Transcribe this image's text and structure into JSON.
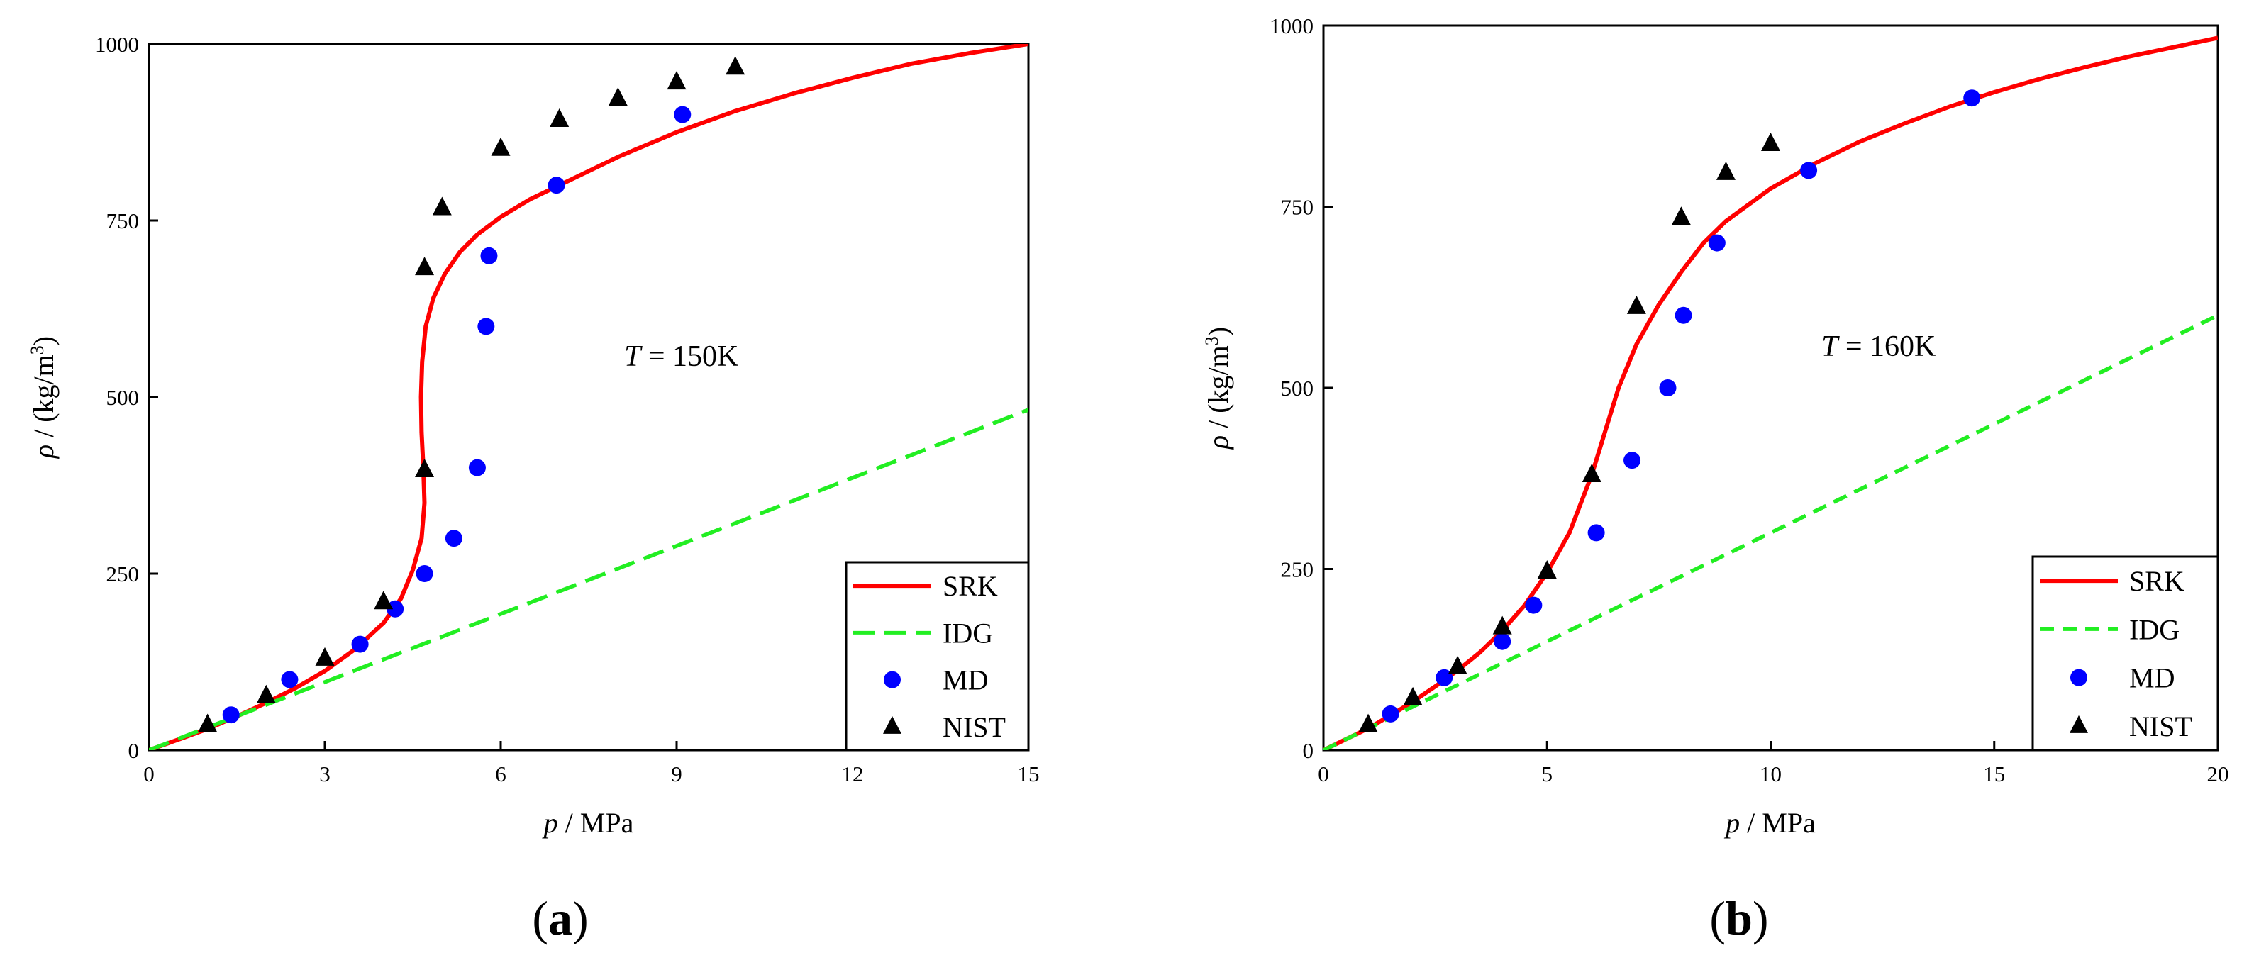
{
  "chart_data": [
    {
      "type": "line",
      "panel_label_open": "(",
      "panel_label_letter": "a",
      "panel_label_close": ")",
      "annotation": {
        "var": "T",
        "value": " = 150K"
      },
      "xlabel": {
        "var": "p",
        "unit": " / MPa"
      },
      "ylabel": {
        "var": "ρ",
        "unit_pre": " / (kg/m",
        "unit_sup": "3",
        "unit_post": ")"
      },
      "xlim": [
        0,
        15
      ],
      "ylim": [
        0,
        1000
      ],
      "xticks": [
        0,
        3,
        6,
        9,
        12,
        15
      ],
      "yticks": [
        0,
        250,
        500,
        750,
        1000
      ],
      "legend_position": "bottom-right",
      "series": [
        {
          "name": "SRK",
          "kind": "line",
          "color": "#ff0000",
          "dash": "solid",
          "x": [
            0,
            0.5,
            1,
            1.5,
            2,
            2.5,
            3,
            3.5,
            4,
            4.3,
            4.5,
            4.65,
            4.7,
            4.68,
            4.65,
            4.64,
            4.66,
            4.72,
            4.85,
            5.05,
            5.3,
            5.6,
            6,
            6.5,
            7,
            8,
            9,
            10,
            11,
            12,
            13,
            14,
            15
          ],
          "y": [
            0,
            15,
            30,
            48,
            67,
            88,
            112,
            142,
            180,
            215,
            255,
            300,
            350,
            400,
            450,
            500,
            550,
            600,
            640,
            675,
            705,
            730,
            755,
            780,
            800,
            840,
            875,
            905,
            930,
            952,
            972,
            987,
            1000
          ]
        },
        {
          "name": "IDG",
          "kind": "line",
          "color": "#22ee22",
          "dash": "dashed",
          "x": [
            0,
            15
          ],
          "y": [
            0,
            482
          ]
        },
        {
          "name": "MD",
          "kind": "scatter",
          "marker": "circle",
          "color": "#0000ff",
          "x": [
            1.4,
            2.4,
            3.6,
            4.2,
            4.7,
            5.2,
            5.6,
            5.75,
            5.8,
            6.95,
            9.1
          ],
          "y": [
            50,
            100,
            150,
            200,
            250,
            300,
            400,
            600,
            700,
            800,
            900
          ]
        },
        {
          "name": "NIST",
          "kind": "scatter",
          "marker": "triangle",
          "color": "#000000",
          "x": [
            1,
            2,
            3,
            4,
            4.7,
            4.7,
            5,
            6,
            7,
            8,
            9,
            10
          ],
          "y": [
            36,
            77,
            130,
            210,
            397,
            683,
            768,
            852,
            893,
            923,
            946,
            967
          ]
        }
      ]
    },
    {
      "type": "line",
      "panel_label_open": "(",
      "panel_label_letter": "b",
      "panel_label_close": ")",
      "annotation": {
        "var": "T",
        "value": " = 160K"
      },
      "xlabel": {
        "var": "p",
        "unit": " / MPa"
      },
      "ylabel": {
        "var": "ρ",
        "unit_pre": " / (kg/m",
        "unit_sup": "3",
        "unit_post": ")"
      },
      "xlim": [
        0,
        20
      ],
      "ylim": [
        0,
        1000
      ],
      "xticks": [
        0,
        5,
        10,
        15,
        20
      ],
      "yticks": [
        0,
        250,
        500,
        750,
        1000
      ],
      "legend_position": "bottom-right",
      "series": [
        {
          "name": "SRK",
          "kind": "line",
          "color": "#ff0000",
          "dash": "solid",
          "x": [
            0,
            0.5,
            1,
            1.5,
            2,
            2.5,
            3,
            3.5,
            4,
            4.5,
            5,
            5.5,
            6,
            6.3,
            6.6,
            7,
            7.5,
            8,
            8.5,
            9,
            10,
            11,
            12,
            13,
            14,
            15,
            16,
            17,
            18,
            19,
            20
          ],
          "y": [
            0,
            15,
            30,
            48,
            67,
            88,
            110,
            135,
            165,
            200,
            245,
            300,
            380,
            440,
            500,
            560,
            615,
            660,
            700,
            730,
            775,
            810,
            840,
            865,
            888,
            908,
            926,
            942,
            957,
            970,
            983
          ]
        },
        {
          "name": "IDG",
          "kind": "line",
          "color": "#22ee22",
          "dash": "dashed",
          "x": [
            0,
            20
          ],
          "y": [
            0,
            600
          ]
        },
        {
          "name": "MD",
          "kind": "scatter",
          "marker": "circle",
          "color": "#0000ff",
          "x": [
            1.5,
            2.7,
            4,
            4.7,
            6.1,
            6.9,
            7.7,
            8.05,
            8.8,
            10.85,
            14.5
          ],
          "y": [
            50,
            100,
            150,
            200,
            300,
            400,
            500,
            600,
            700,
            800,
            900
          ]
        },
        {
          "name": "NIST",
          "kind": "scatter",
          "marker": "triangle",
          "color": "#000000",
          "x": [
            1,
            2,
            3,
            4,
            5,
            6,
            7,
            8,
            9,
            10
          ],
          "y": [
            35,
            72,
            115,
            170,
            247,
            380,
            612,
            735,
            797,
            837
          ]
        }
      ]
    }
  ]
}
